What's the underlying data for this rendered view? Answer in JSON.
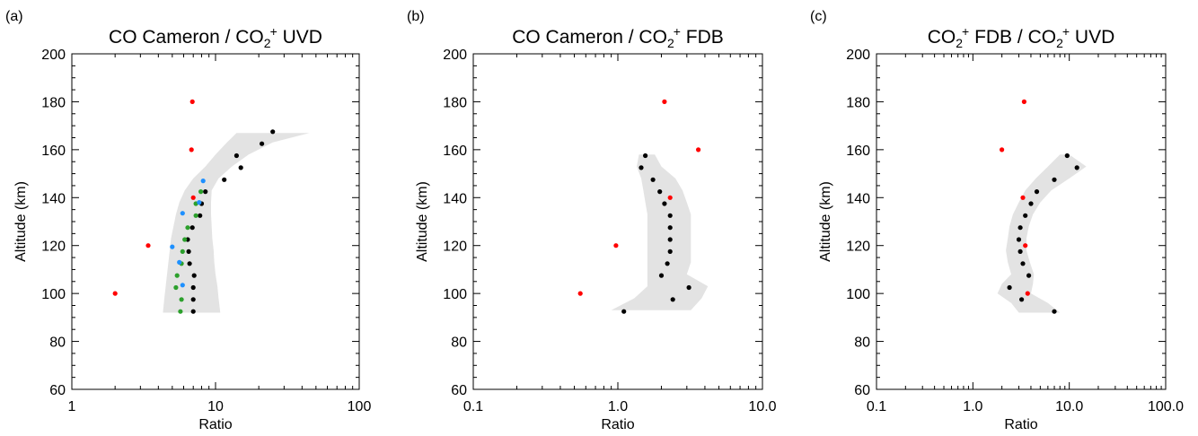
{
  "chart_data": [
    {
      "type": "scatter",
      "panel_label": "(a)",
      "title": "CO Cameron / CO2+ UVD",
      "title_parts": [
        "CO Cameron / CO",
        "2",
        "+",
        " UVD"
      ],
      "xlabel": "Ratio",
      "ylabel": "Altitude (km)",
      "xscale": "log",
      "xlim": [
        1,
        100
      ],
      "ylim": [
        60,
        200
      ],
      "xticks": [
        1,
        10,
        100
      ],
      "xtick_labels": [
        "1",
        "10",
        "100"
      ],
      "yticks": [
        60,
        80,
        100,
        120,
        140,
        160,
        180,
        200
      ],
      "ytick_labels": [
        "60",
        "80",
        "100",
        "120",
        "140",
        "160",
        "180",
        "200"
      ],
      "grid": false,
      "band": {
        "color": "#e3e3e3",
        "altitude": [
          92,
          98,
          103,
          108,
          113,
          118,
          123,
          128,
          133,
          138,
          143,
          148,
          153,
          158,
          163,
          167
        ],
        "low": [
          4.3,
          4.4,
          4.5,
          4.6,
          4.7,
          4.8,
          4.9,
          5.1,
          5.3,
          5.6,
          6.1,
          7.0,
          8.5,
          10.0,
          12.0,
          14.0
        ],
        "high": [
          10.8,
          10.5,
          10.3,
          10.0,
          9.8,
          9.7,
          9.5,
          9.4,
          9.3,
          9.3,
          9.4,
          10.5,
          13.0,
          17.0,
          25.0,
          45.0
        ]
      },
      "series": [
        {
          "color": "#000000",
          "points": [
            [
              7.0,
              92.5
            ],
            [
              7.0,
              97.5
            ],
            [
              7.0,
              102.5
            ],
            [
              7.1,
              107.5
            ],
            [
              6.6,
              112.5
            ],
            [
              6.5,
              117.5
            ],
            [
              6.4,
              122.5
            ],
            [
              6.9,
              127.5
            ],
            [
              7.8,
              132.5
            ],
            [
              8.0,
              137.5
            ],
            [
              8.5,
              142.5
            ],
            [
              11.5,
              147.5
            ],
            [
              15.0,
              152.5
            ],
            [
              14.0,
              157.5
            ],
            [
              21.0,
              162.5
            ],
            [
              25.0,
              167.5
            ]
          ]
        },
        {
          "color": "#2ca02c",
          "points": [
            [
              5.7,
              92.5
            ],
            [
              5.8,
              97.5
            ],
            [
              5.3,
              102.5
            ],
            [
              5.4,
              107.5
            ],
            [
              5.8,
              112.5
            ],
            [
              5.9,
              117.5
            ],
            [
              6.1,
              122.5
            ],
            [
              6.4,
              127.5
            ],
            [
              7.3,
              132.5
            ],
            [
              7.3,
              137.5
            ],
            [
              7.9,
              142.5
            ]
          ]
        },
        {
          "color": "#1e90ff",
          "points": [
            [
              5.9,
              103.5
            ],
            [
              5.6,
              113.0
            ],
            [
              5.0,
              119.5
            ],
            [
              5.9,
              133.5
            ],
            [
              7.7,
              138.0
            ],
            [
              8.2,
              147.0
            ]
          ]
        },
        {
          "color": "#ff0000",
          "points": [
            [
              2.0,
              100
            ],
            [
              3.4,
              120
            ],
            [
              7.0,
              140
            ],
            [
              6.8,
              160
            ],
            [
              6.9,
              180
            ]
          ]
        }
      ]
    },
    {
      "type": "scatter",
      "panel_label": "(b)",
      "title": "CO Cameron / CO2+ FDB",
      "title_parts": [
        "CO Cameron / CO",
        "2",
        "+",
        " FDB"
      ],
      "xlabel": "Ratio",
      "ylabel": "Altitude (km)",
      "xscale": "log",
      "xlim": [
        0.1,
        10
      ],
      "ylim": [
        60,
        200
      ],
      "xticks": [
        0.1,
        1,
        10
      ],
      "xtick_labels": [
        "0.1",
        "1.0",
        "10.0"
      ],
      "yticks": [
        60,
        80,
        100,
        120,
        140,
        160,
        180,
        200
      ],
      "ytick_labels": [
        "60",
        "80",
        "100",
        "120",
        "140",
        "160",
        "180",
        "200"
      ],
      "grid": false,
      "band": {
        "color": "#e3e3e3",
        "altitude": [
          93,
          98,
          103,
          108,
          113,
          118,
          123,
          128,
          133,
          138,
          143,
          148,
          153,
          158
        ],
        "low": [
          0.9,
          1.3,
          1.6,
          1.6,
          1.6,
          1.6,
          1.6,
          1.6,
          1.6,
          1.55,
          1.5,
          1.45,
          1.35,
          1.4
        ],
        "high": [
          3.2,
          3.8,
          4.2,
          3.0,
          3.2,
          3.2,
          3.2,
          3.2,
          3.2,
          3.0,
          2.8,
          2.5,
          2.0,
          1.8
        ]
      },
      "series": [
        {
          "color": "#000000",
          "points": [
            [
              1.1,
              92.5
            ],
            [
              2.4,
              97.5
            ],
            [
              3.1,
              102.5
            ],
            [
              2.0,
              107.5
            ],
            [
              2.2,
              112.5
            ],
            [
              2.3,
              117.5
            ],
            [
              2.3,
              122.5
            ],
            [
              2.3,
              127.5
            ],
            [
              2.3,
              132.5
            ],
            [
              2.1,
              137.5
            ],
            [
              1.95,
              142.5
            ],
            [
              1.75,
              147.5
            ],
            [
              1.45,
              152.5
            ],
            [
              1.55,
              157.5
            ]
          ]
        },
        {
          "color": "#ff0000",
          "points": [
            [
              0.55,
              100
            ],
            [
              0.97,
              120
            ],
            [
              2.3,
              140
            ],
            [
              3.6,
              160
            ],
            [
              2.1,
              180
            ]
          ]
        }
      ]
    },
    {
      "type": "scatter",
      "panel_label": "(c)",
      "title": "CO2+ FDB / CO2+ UVD",
      "title_parts": [
        "CO",
        "2",
        "+",
        " FDB / CO",
        "2",
        "+",
        " UVD"
      ],
      "xlabel": "Ratio",
      "ylabel": "Altitude (km)",
      "xscale": "log",
      "xlim": [
        0.1,
        100
      ],
      "ylim": [
        60,
        200
      ],
      "xticks": [
        0.1,
        1,
        10,
        100
      ],
      "xtick_labels": [
        "0.1",
        "1.0",
        "10.0",
        "100.0"
      ],
      "yticks": [
        60,
        80,
        100,
        120,
        140,
        160,
        180,
        200
      ],
      "ytick_labels": [
        "60",
        "80",
        "100",
        "120",
        "140",
        "160",
        "180",
        "200"
      ],
      "grid": false,
      "band": {
        "color": "#e3e3e3",
        "altitude": [
          92,
          96,
          100,
          104,
          108,
          113,
          118,
          123,
          128,
          133,
          138,
          143,
          148,
          153,
          158
        ],
        "low": [
          3.0,
          2.5,
          1.8,
          2.0,
          2.5,
          2.3,
          2.2,
          2.3,
          2.4,
          2.6,
          3.0,
          3.5,
          4.5,
          6.0,
          8.0
        ],
        "high": [
          8.0,
          6.0,
          4.0,
          4.2,
          4.3,
          3.9,
          3.6,
          3.6,
          3.8,
          4.2,
          5.0,
          6.5,
          10.0,
          15.0,
          10.0
        ]
      },
      "series": [
        {
          "color": "#000000",
          "points": [
            [
              7.0,
              92.5
            ],
            [
              3.2,
              97.5
            ],
            [
              2.4,
              102.5
            ],
            [
              3.8,
              107.5
            ],
            [
              3.3,
              112.5
            ],
            [
              3.1,
              117.5
            ],
            [
              3.0,
              122.5
            ],
            [
              3.1,
              127.5
            ],
            [
              3.5,
              132.5
            ],
            [
              4.0,
              137.5
            ],
            [
              4.6,
              142.5
            ],
            [
              7.0,
              147.5
            ],
            [
              12.0,
              152.5
            ],
            [
              9.5,
              157.5
            ]
          ]
        },
        {
          "color": "#ff0000",
          "points": [
            [
              3.7,
              100
            ],
            [
              3.5,
              120
            ],
            [
              3.3,
              140
            ],
            [
              2.0,
              160
            ],
            [
              3.4,
              180
            ]
          ]
        }
      ]
    }
  ]
}
